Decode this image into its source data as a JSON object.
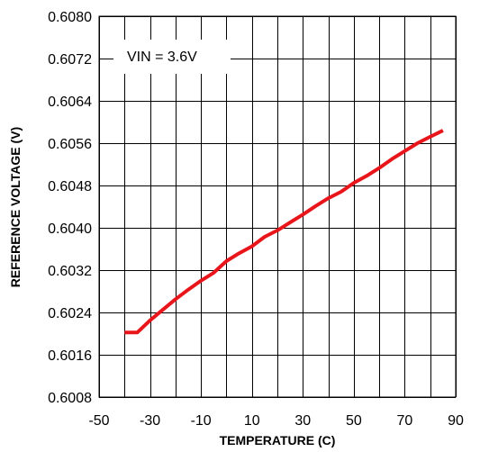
{
  "chart_data": {
    "type": "line",
    "title": "",
    "xlabel": "TEMPERATURE (C)",
    "ylabel": "REFERENCE VOLTAGE (V)",
    "xlim": [
      -50,
      90
    ],
    "ylim": [
      0.6008,
      0.608
    ],
    "x_ticks": [
      -50,
      -30,
      -10,
      10,
      30,
      50,
      70,
      90
    ],
    "x_tick_labels": [
      "-50",
      "-30",
      "-10",
      "10",
      "30",
      "50",
      "70",
      "90"
    ],
    "x_grid": [
      -50,
      -40,
      -30,
      -20,
      -10,
      0,
      10,
      20,
      30,
      40,
      50,
      60,
      70,
      80,
      90
    ],
    "y_ticks": [
      0.6008,
      0.6016,
      0.6024,
      0.6032,
      0.604,
      0.6048,
      0.6056,
      0.6064,
      0.6072,
      0.608
    ],
    "y_tick_labels": [
      "0.6008",
      "0.6016",
      "0.6024",
      "0.6032",
      "0.6040",
      "0.6048",
      "0.6056",
      "0.6064",
      "0.6072",
      "0.6080"
    ],
    "grid": true,
    "annotation": "VIN = 3.6V",
    "series": [
      {
        "color": "#e8161b",
        "x": [
          -40,
          -35,
          -30,
          -25,
          -20,
          -15,
          -10,
          -5,
          0,
          5,
          10,
          15,
          20,
          25,
          30,
          35,
          40,
          45,
          50,
          55,
          60,
          65,
          70,
          75,
          80,
          85
        ],
        "y": [
          0.60202,
          0.60202,
          0.60225,
          0.60245,
          0.60265,
          0.60283,
          0.603,
          0.60315,
          0.60337,
          0.60352,
          0.60365,
          0.60383,
          0.60395,
          0.6041,
          0.60425,
          0.60441,
          0.60456,
          0.60468,
          0.60485,
          0.60498,
          0.60513,
          0.6053,
          0.60545,
          0.6056,
          0.60572,
          0.60584
        ]
      }
    ]
  }
}
